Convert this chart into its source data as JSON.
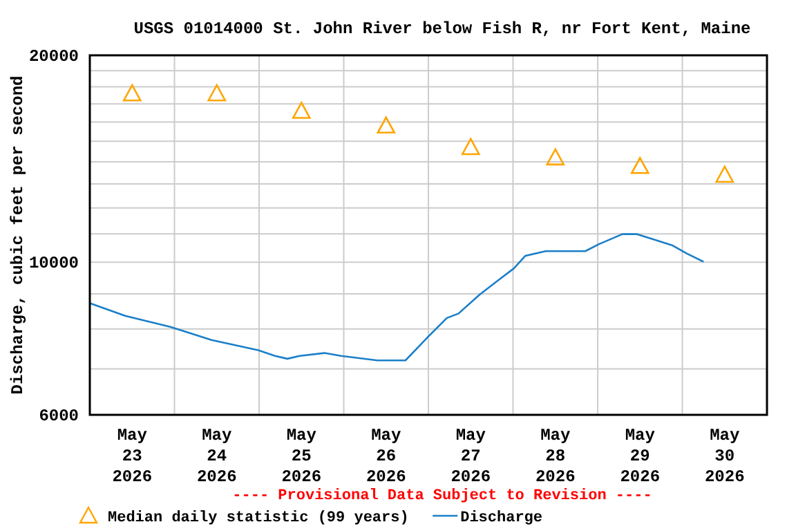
{
  "chart_data": {
    "type": "line",
    "title": "USGS 01014000 St. John River below Fish R, nr Fort Kent, Maine",
    "ylabel": "Discharge, cubic feet per second",
    "annotations": [
      "---- Provisional Data Subject to Revision ----"
    ],
    "log": "y",
    "grid": true,
    "legend": "bottom",
    "xlim": [
      "2026-05-23",
      "2026-05-31"
    ],
    "xticks": [
      {
        "value": "2026-05-23T12:00",
        "label": "May\n23\n2026"
      },
      {
        "value": "2026-05-24T12:00",
        "label": "May\n24\n2026"
      },
      {
        "value": "2026-05-25T12:00",
        "label": "May\n25\n2026"
      },
      {
        "value": "2026-05-26T12:00",
        "label": "May\n26\n2026"
      },
      {
        "value": "2026-05-27T12:00",
        "label": "May\n27\n2026"
      },
      {
        "value": "2026-05-28T12:00",
        "label": "May\n28\n2026"
      },
      {
        "value": "2026-05-29T12:00",
        "label": "May\n29\n2026"
      },
      {
        "value": "2026-05-30T12:00",
        "label": "May\n30\n2026"
      },
      {
        "value": "2026-05-24",
        "label": null
      },
      {
        "value": "2026-05-25",
        "label": null
      },
      {
        "value": "2026-05-26",
        "label": null
      },
      {
        "value": "2026-05-27",
        "label": null
      },
      {
        "value": "2026-05-28",
        "label": null
      },
      {
        "value": "2026-05-29",
        "label": null
      },
      {
        "value": "2026-05-30",
        "label": null
      }
    ],
    "ylim": [
      6000,
      20000
    ],
    "yticks": [
      6000,
      {
        "value": 7000,
        "label": null
      },
      {
        "value": 8000,
        "label": null
      },
      {
        "value": 9000,
        "label": null
      },
      10000,
      {
        "value": 11000,
        "label": null
      },
      {
        "value": 12000,
        "label": null
      },
      {
        "value": 13000,
        "label": null
      },
      {
        "value": 14000,
        "label": null
      },
      {
        "value": 15000,
        "label": null
      },
      {
        "value": 16000,
        "label": null
      },
      {
        "value": 17000,
        "label": null
      },
      {
        "value": 18000,
        "label": null
      },
      {
        "value": 19000,
        "label": null
      },
      20000
    ],
    "series": [
      {
        "name": "Median daily statistic (99 years)",
        "type": "scatter",
        "marker": "triangle",
        "color": "#ffa500",
        "x": [
          "2026-05-23T12:00",
          "2026-05-24T12:00",
          "2026-05-25T12:00",
          "2026-05-26T12:00",
          "2026-05-27T12:00",
          "2026-05-28T12:00",
          "2026-05-29T12:00",
          "2026-05-30T12:00"
        ],
        "values": [
          17600,
          17600,
          16600,
          15800,
          14700,
          14200,
          13800,
          13400
        ]
      },
      {
        "name": "Discharge",
        "color": "#1a7fc8",
        "x": [
          "2026-05-23T00:00",
          "2026-05-23T10:00",
          "2026-05-23T23:00",
          "2026-05-24T10:30",
          "2026-05-24T23:45",
          "2026-05-25T04:30",
          "2026-05-25T08:00",
          "2026-05-25T11:30",
          "2026-05-25T18:30",
          "2026-05-25T23:15",
          "2026-05-26T09:30",
          "2026-05-26T17:30",
          "2026-05-27T00:00",
          "2026-05-27T05:15",
          "2026-05-27T08:30",
          "2026-05-27T14:30",
          "2026-05-27T19:30",
          "2026-05-28T00:15",
          "2026-05-28T03:30",
          "2026-05-28T09:15",
          "2026-05-28T20:30",
          "2026-05-29T00:15",
          "2026-05-29T07:00",
          "2026-05-29T11:00",
          "2026-05-29T16:00",
          "2026-05-29T21:15",
          "2026-05-30T01:15",
          "2026-05-30T06:00"
        ],
        "values": [
          8720,
          8360,
          8050,
          7710,
          7450,
          7310,
          7240,
          7310,
          7380,
          7310,
          7200,
          7200,
          7800,
          8300,
          8420,
          8970,
          9390,
          9800,
          10220,
          10380,
          10380,
          10620,
          10990,
          10990,
          10790,
          10580,
          10300,
          10020
        ]
      }
    ]
  }
}
